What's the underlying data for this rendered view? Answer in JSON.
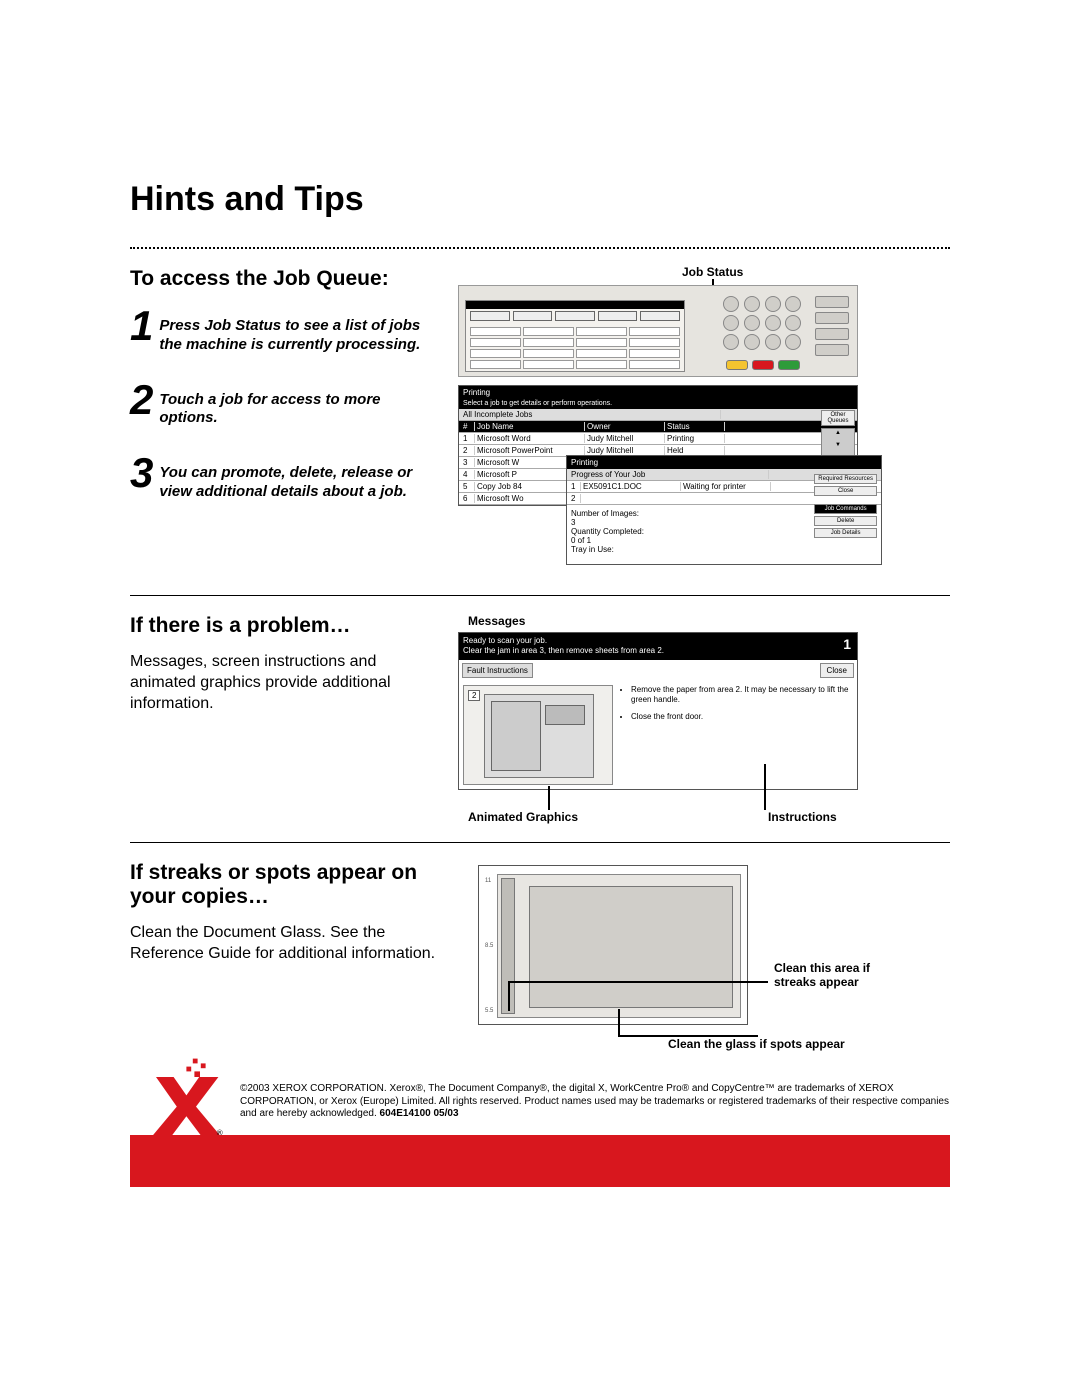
{
  "title": "Hints and Tips",
  "section1": {
    "heading": "To access the Job Queue:",
    "steps": [
      {
        "n": "1",
        "text": "Press Job Status to see a list of jobs the machine is currently processing."
      },
      {
        "n": "2",
        "text": "Touch a job for access to more options."
      },
      {
        "n": "3",
        "text": "You can promote, delete, release or view additional details about a job."
      }
    ],
    "label_jobstatus": "Job Status",
    "joblist": {
      "title": "Printing",
      "subtitle": "Select a job to get details or perform operations.",
      "group": "All Incomplete Jobs",
      "side": [
        "Other Queues"
      ],
      "cols": [
        "#",
        "Job Name",
        "Owner",
        "Status"
      ],
      "rows": [
        [
          "1",
          "Microsoft Word",
          "Judy Mitchell",
          "Printing"
        ],
        [
          "2",
          "Microsoft PowerPoint",
          "Judy Mitchell",
          "Held"
        ],
        [
          "3",
          "Microsoft W",
          "",
          ""
        ],
        [
          "4",
          "Microsoft P",
          "",
          ""
        ],
        [
          "5",
          "Copy Job 84",
          "",
          ""
        ],
        [
          "6",
          "Microsoft Wo",
          "",
          ""
        ]
      ]
    },
    "progress": {
      "bar": "Printing",
      "title": "Progress of Your Job",
      "job": "EX5091C1.DOC",
      "status": "Waiting for printer",
      "lines": [
        "Number of Images:",
        "3",
        "Quantity Completed:",
        "0 of 1",
        "Tray in Use:"
      ],
      "side_top": [
        "Required Resources",
        "Close"
      ],
      "side_cmds": [
        "Job Commands",
        "Delete",
        "Job Details"
      ]
    }
  },
  "section2": {
    "heading": "If there is a problem…",
    "body": "Messages, screen instructions and animated graphics provide additional information.",
    "label_messages": "Messages",
    "label_anim": "Animated Graphics",
    "label_instr": "Instructions",
    "fault": {
      "line1": "Ready to scan your job.",
      "line2": "Clear the jam in area 3, then remove sheets from area 2.",
      "num": "1",
      "tab": "Fault Instructions",
      "close": "Close",
      "area": "2",
      "bullets": [
        "Remove the paper from area 2.  It may be necessary to lift the green handle.",
        "Close the front door."
      ]
    }
  },
  "section3": {
    "heading": "If streaks or spots appear on your copies…",
    "body": "Clean the Document Glass. See the Reference Guide for additional information.",
    "label_strip": "Clean this area if streaks appear",
    "label_glass": "Clean the glass if spots appear"
  },
  "footer": {
    "legal": "©2003 XEROX CORPORATION.  Xerox®, The Document Company®, the digital X, WorkCentre Pro® and CopyCentre™ are trademarks of XEROX CORPORATION, or Xerox (Europe) Limited. All rights reserved. Product names used may be trademarks or registered trademarks of their respective companies and are hereby acknowledged.  ",
    "code": "604E14100  05/03"
  },
  "colors": {
    "accent": "#d8171e",
    "green": "#2e9b3a",
    "yellow": "#f4c430"
  }
}
